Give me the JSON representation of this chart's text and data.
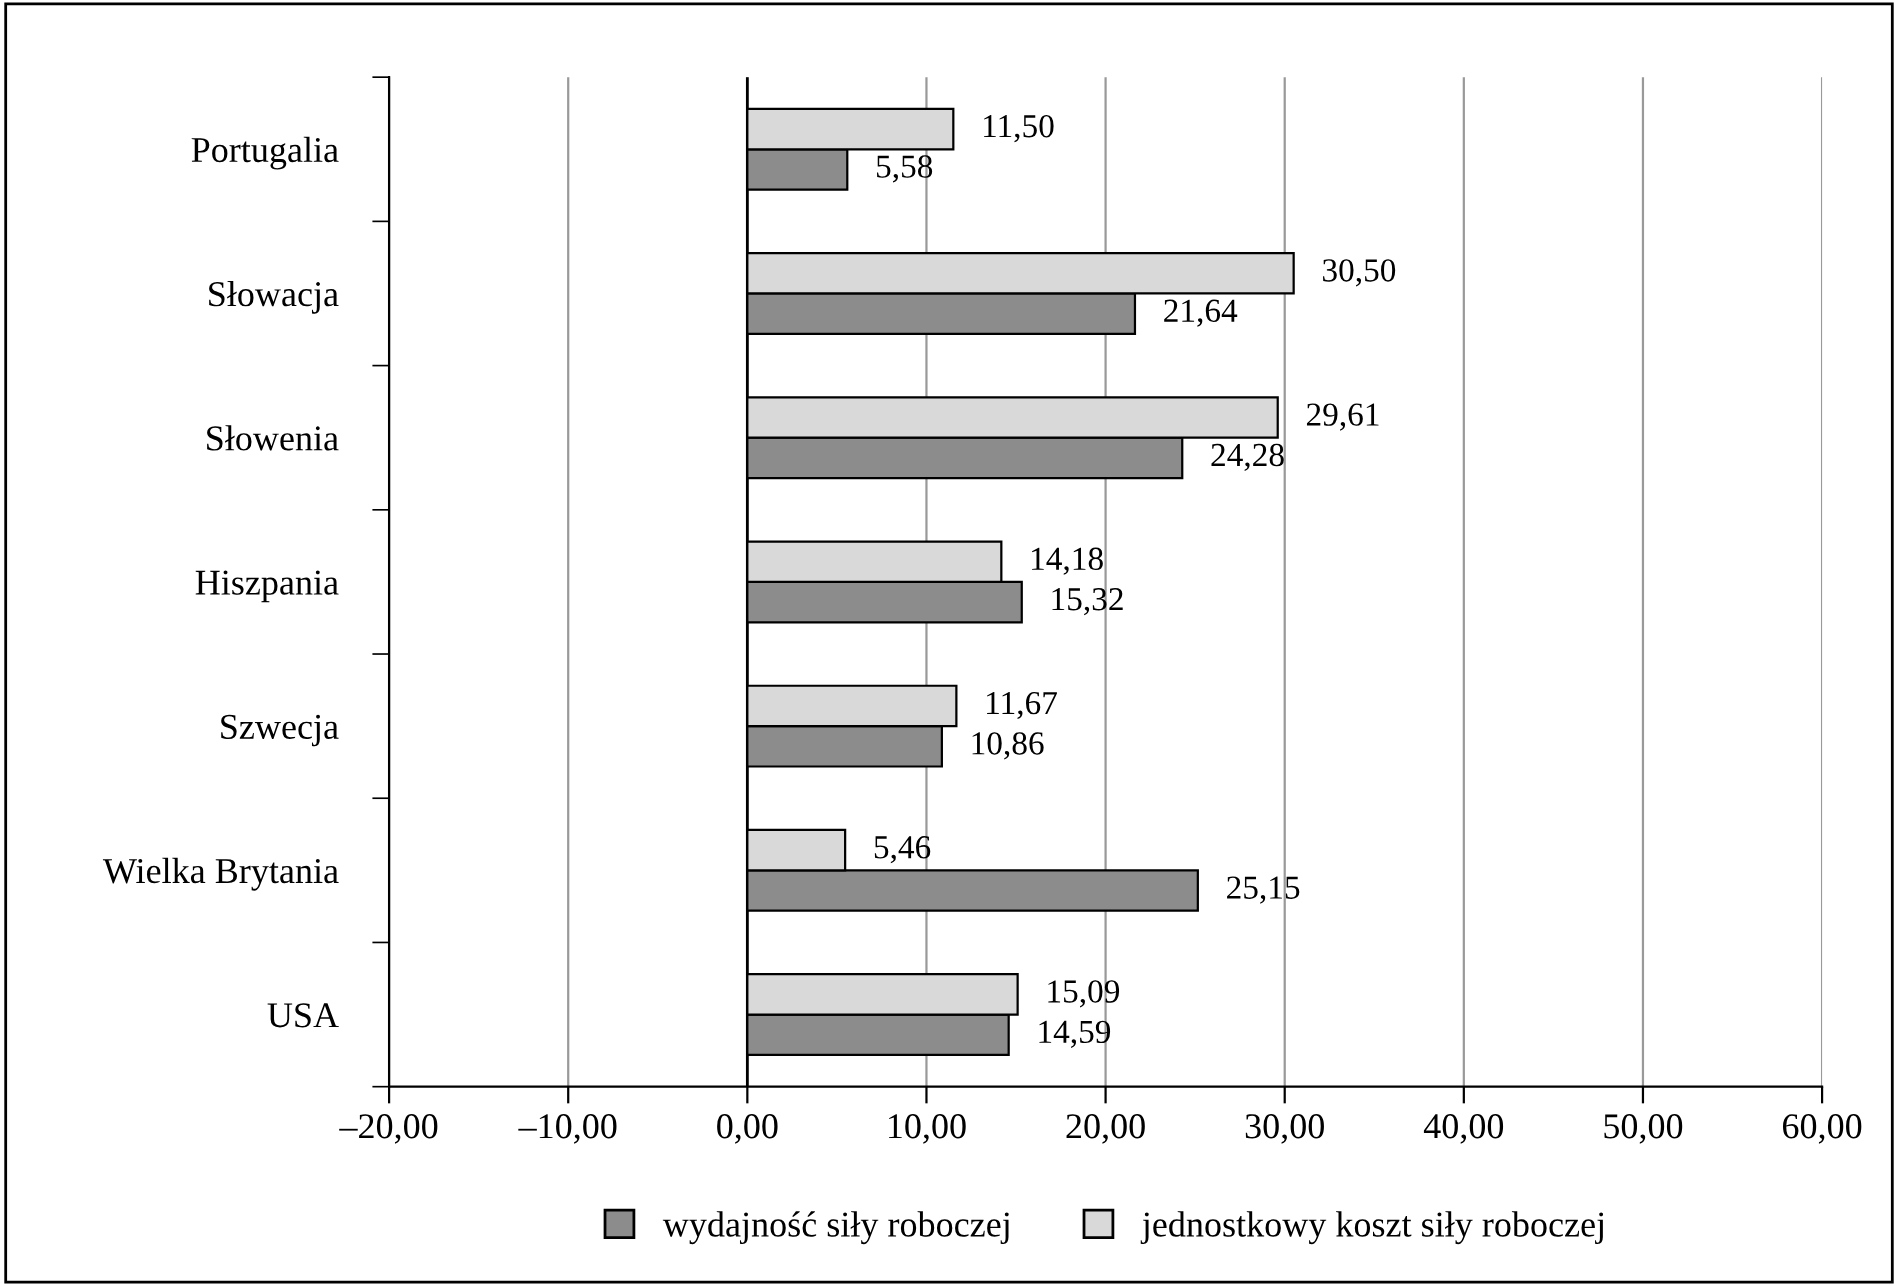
{
  "chart_data": {
    "type": "bar",
    "orientation": "horizontal",
    "categories": [
      "Portugalia",
      "Słowacja",
      "Słowenia",
      "Hiszpania",
      "Szwecja",
      "Wielka Brytania",
      "USA"
    ],
    "series": [
      {
        "name": "wydajność siły roboczej",
        "color": "#8c8c8c",
        "values": [
          5.58,
          21.64,
          24.28,
          15.32,
          10.86,
          25.15,
          14.59
        ],
        "value_labels": [
          "5,58",
          "21,64",
          "24,28",
          "15,32",
          "10,86",
          "25,15",
          "14,59"
        ]
      },
      {
        "name": "jednostkowy koszt siły roboczej",
        "color": "#d9d9d9",
        "values": [
          11.5,
          30.5,
          29.61,
          14.18,
          11.67,
          5.46,
          15.09
        ],
        "value_labels": [
          "11,50",
          "30,50",
          "29,61",
          "14,18",
          "11,67",
          "5,46",
          "15,09"
        ]
      }
    ],
    "xlim": [
      -20,
      60
    ],
    "xticks": [
      {
        "value": -20,
        "label": "–20,00"
      },
      {
        "value": -10,
        "label": "–10,00"
      },
      {
        "value": 0,
        "label": "0,00"
      },
      {
        "value": 10,
        "label": "10,00"
      },
      {
        "value": 20,
        "label": "20,00"
      },
      {
        "value": 30,
        "label": "30,00"
      },
      {
        "value": 40,
        "label": "40,00"
      },
      {
        "value": 50,
        "label": "50,00"
      },
      {
        "value": 60,
        "label": "60,00"
      }
    ],
    "ref_lines": [
      {
        "axis": "x",
        "value": 0,
        "label": null,
        "color": "#000000"
      }
    ],
    "grid": "x",
    "legend": "bottom"
  }
}
